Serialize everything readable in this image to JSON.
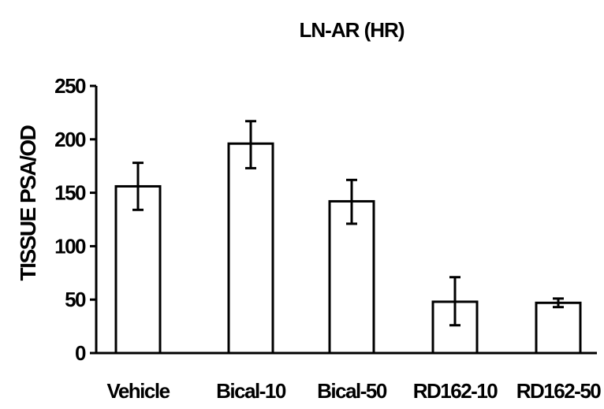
{
  "chart_data": {
    "type": "bar",
    "title": "LN-AR (HR)",
    "xlabel": "",
    "ylabel": "TISSUE PSA/OD",
    "ylim": [
      0,
      250
    ],
    "yticks": [
      0,
      50,
      100,
      150,
      200,
      250
    ],
    "grid": false,
    "categories": [
      "Vehicle",
      "Bical-10",
      "Bical-50",
      "RD162-10",
      "RD162-50"
    ],
    "values": [
      156,
      196,
      142,
      48,
      47
    ],
    "error_low": [
      134,
      173,
      121,
      26,
      43
    ],
    "error_high": [
      178,
      217,
      162,
      71,
      51
    ],
    "bar_fill": "#ffffff",
    "bar_stroke": "#000000"
  }
}
